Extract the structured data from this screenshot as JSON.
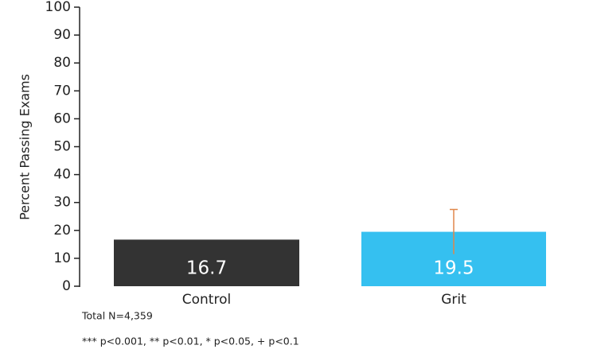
{
  "chart_data": {
    "type": "bar",
    "y_label": "Percent Passing Exams",
    "categories": [
      "Control",
      "Grit"
    ],
    "values": [
      16.7,
      19.5
    ],
    "errors": [
      null,
      8
    ],
    "colors": [
      "#333333",
      "#35c0f0"
    ],
    "error_color": "#e0874a",
    "ylim": [
      0,
      100
    ],
    "yticks": [
      0,
      10,
      20,
      30,
      40,
      50,
      60,
      70,
      80,
      90,
      100
    ],
    "notes": [
      "Total N=4,359",
      "*** p<0.001, ** p<0.01, * p<0.05, + p<0.1"
    ]
  }
}
